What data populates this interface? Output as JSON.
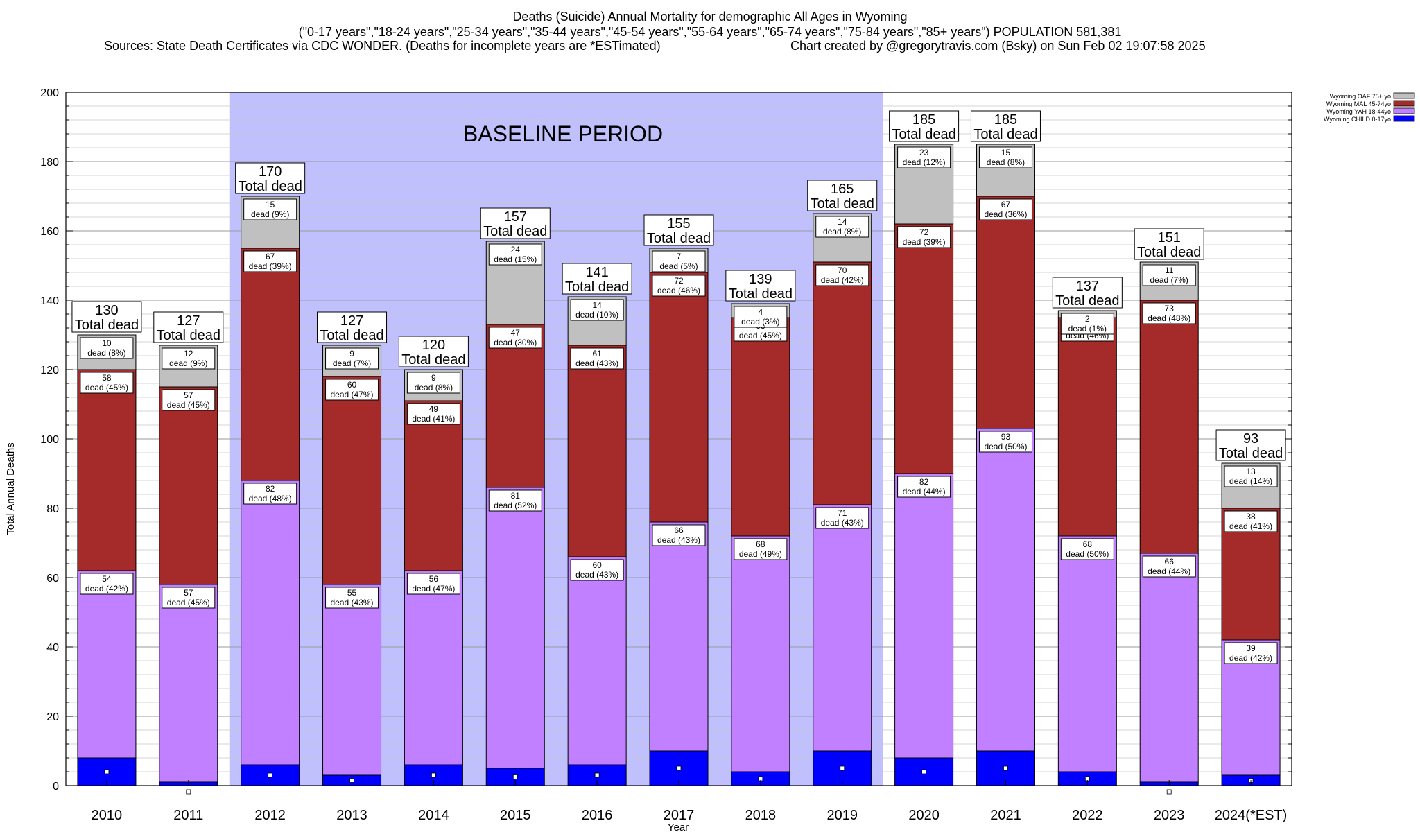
{
  "header": {
    "title_line1": "Deaths (Suicide) Annual Mortality for demographic All Ages in Wyoming",
    "title_line2": "(\"0-17 years\",\"18-24 years\",\"25-34 years\",\"35-44 years\",\"45-54 years\",\"55-64 years\",\"65-74 years\",\"75-84 years\",\"85+ years\") POPULATION 581,381",
    "sources": "Sources: State Death Certificates via CDC WONDER. (Deaths for incomplete years are *ESTimated)",
    "credit": "Chart created by @gregorytravis.com (Bsky) on Sun Feb 02 19:07:58 2025"
  },
  "chart_data": {
    "type": "bar",
    "stacked": true,
    "categories": [
      "2010",
      "2011",
      "2012",
      "2013",
      "2014",
      "2015",
      "2016",
      "2017",
      "2018",
      "2019",
      "2020",
      "2021",
      "2022",
      "2023",
      "2024(*EST)"
    ],
    "xlabel": "Year",
    "ylabel": "Total Annual Deaths",
    "ylim": [
      0,
      200
    ],
    "yticks": [
      0,
      20,
      40,
      60,
      80,
      100,
      120,
      140,
      160,
      180,
      200
    ],
    "grid": "horizontal",
    "legend_position": "top-right",
    "series": [
      {
        "name": "Wyoming CHILD 0-17yo",
        "color": "#0000ff",
        "values": [
          8,
          1,
          6,
          3,
          6,
          5,
          6,
          10,
          4,
          10,
          8,
          10,
          4,
          1,
          3
        ],
        "labels": [
          "",
          "",
          "",
          "",
          "",
          "",
          "",
          "",
          "",
          "",
          "",
          "",
          "",
          "",
          ""
        ]
      },
      {
        "name": "Wyoming YAH 18-44yo",
        "color": "#c080ff",
        "values": [
          54,
          57,
          82,
          55,
          56,
          81,
          60,
          66,
          68,
          71,
          82,
          93,
          68,
          66,
          39
        ],
        "labels": [
          "dead (42%)",
          "dead (45%)",
          "dead (48%)",
          "dead (43%)",
          "dead (47%)",
          "dead (52%)",
          "dead (43%)",
          "dead (43%)",
          "dead (49%)",
          "dead (43%)",
          "dead (44%)",
          "dead (50%)",
          "dead (50%)",
          "dead (44%)",
          "dead (42%)"
        ]
      },
      {
        "name": "Wyoming MAL 45-74yo",
        "color": "#a52a2a",
        "values": [
          58,
          57,
          67,
          60,
          49,
          47,
          61,
          72,
          63,
          70,
          72,
          67,
          63,
          73,
          38
        ],
        "labels": [
          "dead (45%)",
          "dead (45%)",
          "dead (39%)",
          "dead (47%)",
          "dead (41%)",
          "dead (30%)",
          "dead (43%)",
          "dead (46%)",
          "dead (45%)",
          "dead (42%)",
          "dead (39%)",
          "dead (36%)",
          "dead (46%)",
          "dead (48%)",
          "dead (41%)"
        ]
      },
      {
        "name": "Wyoming OAF 75+ yo",
        "color": "#c0c0c0",
        "values": [
          10,
          12,
          15,
          9,
          9,
          24,
          14,
          7,
          4,
          14,
          23,
          15,
          2,
          11,
          13
        ],
        "labels": [
          "dead (8%)",
          "dead (9%)",
          "dead (9%)",
          "dead (7%)",
          "dead (8%)",
          "dead (15%)",
          "dead (10%)",
          "dead (5%)",
          "dead (3%)",
          "dead (8%)",
          "dead (12%)",
          "dead (8%)",
          "dead (1%)",
          "dead (7%)",
          "dead (14%)"
        ]
      }
    ],
    "totals": [
      130,
      127,
      170,
      127,
      120,
      157,
      141,
      155,
      139,
      165,
      185,
      185,
      137,
      151,
      93
    ],
    "total_suffix": "Total dead",
    "annotation": {
      "text": "BASELINE PERIOD",
      "from": "2012",
      "to": "2019",
      "color": "#c0c0ff"
    }
  }
}
